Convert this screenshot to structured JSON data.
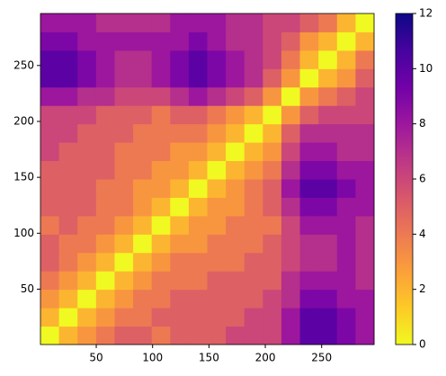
{
  "chart_data": {
    "type": "heatmap",
    "colormap": "plasma_r",
    "xlim": [
      0.5,
      296.5
    ],
    "ylim": [
      0.5,
      296.5
    ],
    "xticks": [
      50,
      100,
      150,
      200,
      250
    ],
    "yticks": [
      50,
      100,
      150,
      200,
      250
    ],
    "clim": [
      0,
      12
    ],
    "cticks": [
      0,
      2,
      4,
      6,
      8,
      10,
      12
    ],
    "z": [
      [
        0,
        2,
        3,
        4,
        5,
        5,
        4,
        5,
        5,
        5,
        6,
        6,
        6,
        8,
        10,
        10,
        9,
        8
      ],
      [
        2,
        0,
        2,
        3,
        4,
        4,
        5,
        5,
        5,
        5,
        5,
        6,
        6,
        8,
        10,
        10,
        9,
        8
      ],
      [
        3,
        2,
        0,
        2,
        3,
        4,
        4,
        5,
        5,
        5,
        5,
        5,
        6,
        7,
        9,
        9,
        8,
        8
      ],
      [
        4,
        3,
        2,
        0,
        2,
        3,
        4,
        4,
        4,
        5,
        5,
        5,
        5,
        7,
        8,
        8,
        8,
        7
      ],
      [
        5,
        4,
        3,
        2,
        0,
        2,
        3,
        4,
        4,
        4,
        4,
        5,
        5,
        6,
        7,
        7,
        8,
        7
      ],
      [
        5,
        4,
        4,
        3,
        2,
        0,
        2,
        3,
        3,
        4,
        4,
        4,
        5,
        6,
        7,
        7,
        8,
        7
      ],
      [
        4,
        5,
        4,
        4,
        3,
        2,
        0,
        2,
        3,
        3,
        4,
        4,
        4,
        6,
        8,
        8,
        8,
        7
      ],
      [
        5,
        5,
        5,
        4,
        4,
        3,
        2,
        0,
        2,
        3,
        3,
        4,
        5,
        7,
        9,
        9,
        8,
        8
      ],
      [
        5,
        5,
        5,
        4,
        4,
        3,
        3,
        2,
        0,
        2,
        3,
        4,
        5,
        8,
        10,
        10,
        9,
        8
      ],
      [
        5,
        5,
        5,
        5,
        4,
        4,
        3,
        3,
        2,
        0,
        2,
        3,
        4,
        7,
        9,
        9,
        8,
        8
      ],
      [
        6,
        5,
        5,
        5,
        4,
        4,
        4,
        3,
        3,
        2,
        0,
        2,
        3,
        6,
        8,
        8,
        7,
        7
      ],
      [
        6,
        6,
        5,
        5,
        5,
        4,
        4,
        4,
        4,
        3,
        2,
        0,
        2,
        5,
        7,
        7,
        7,
        7
      ],
      [
        6,
        6,
        6,
        5,
        5,
        5,
        4,
        5,
        5,
        4,
        3,
        2,
        0,
        3,
        5,
        6,
        6,
        6
      ],
      [
        8,
        8,
        7,
        7,
        6,
        6,
        6,
        7,
        8,
        7,
        6,
        5,
        3,
        0,
        3,
        4,
        5,
        6
      ],
      [
        10,
        10,
        9,
        8,
        7,
        7,
        8,
        9,
        10,
        9,
        8,
        7,
        5,
        3,
        0,
        2,
        3,
        5
      ],
      [
        10,
        10,
        9,
        8,
        7,
        7,
        8,
        9,
        10,
        9,
        8,
        7,
        6,
        4,
        2,
        0,
        2,
        4
      ],
      [
        9,
        9,
        8,
        8,
        8,
        8,
        8,
        8,
        9,
        8,
        7,
        7,
        6,
        5,
        3,
        2,
        0,
        2
      ],
      [
        8,
        8,
        8,
        7,
        7,
        7,
        7,
        8,
        8,
        8,
        7,
        7,
        6,
        6,
        5,
        4,
        2,
        0
      ]
    ]
  }
}
